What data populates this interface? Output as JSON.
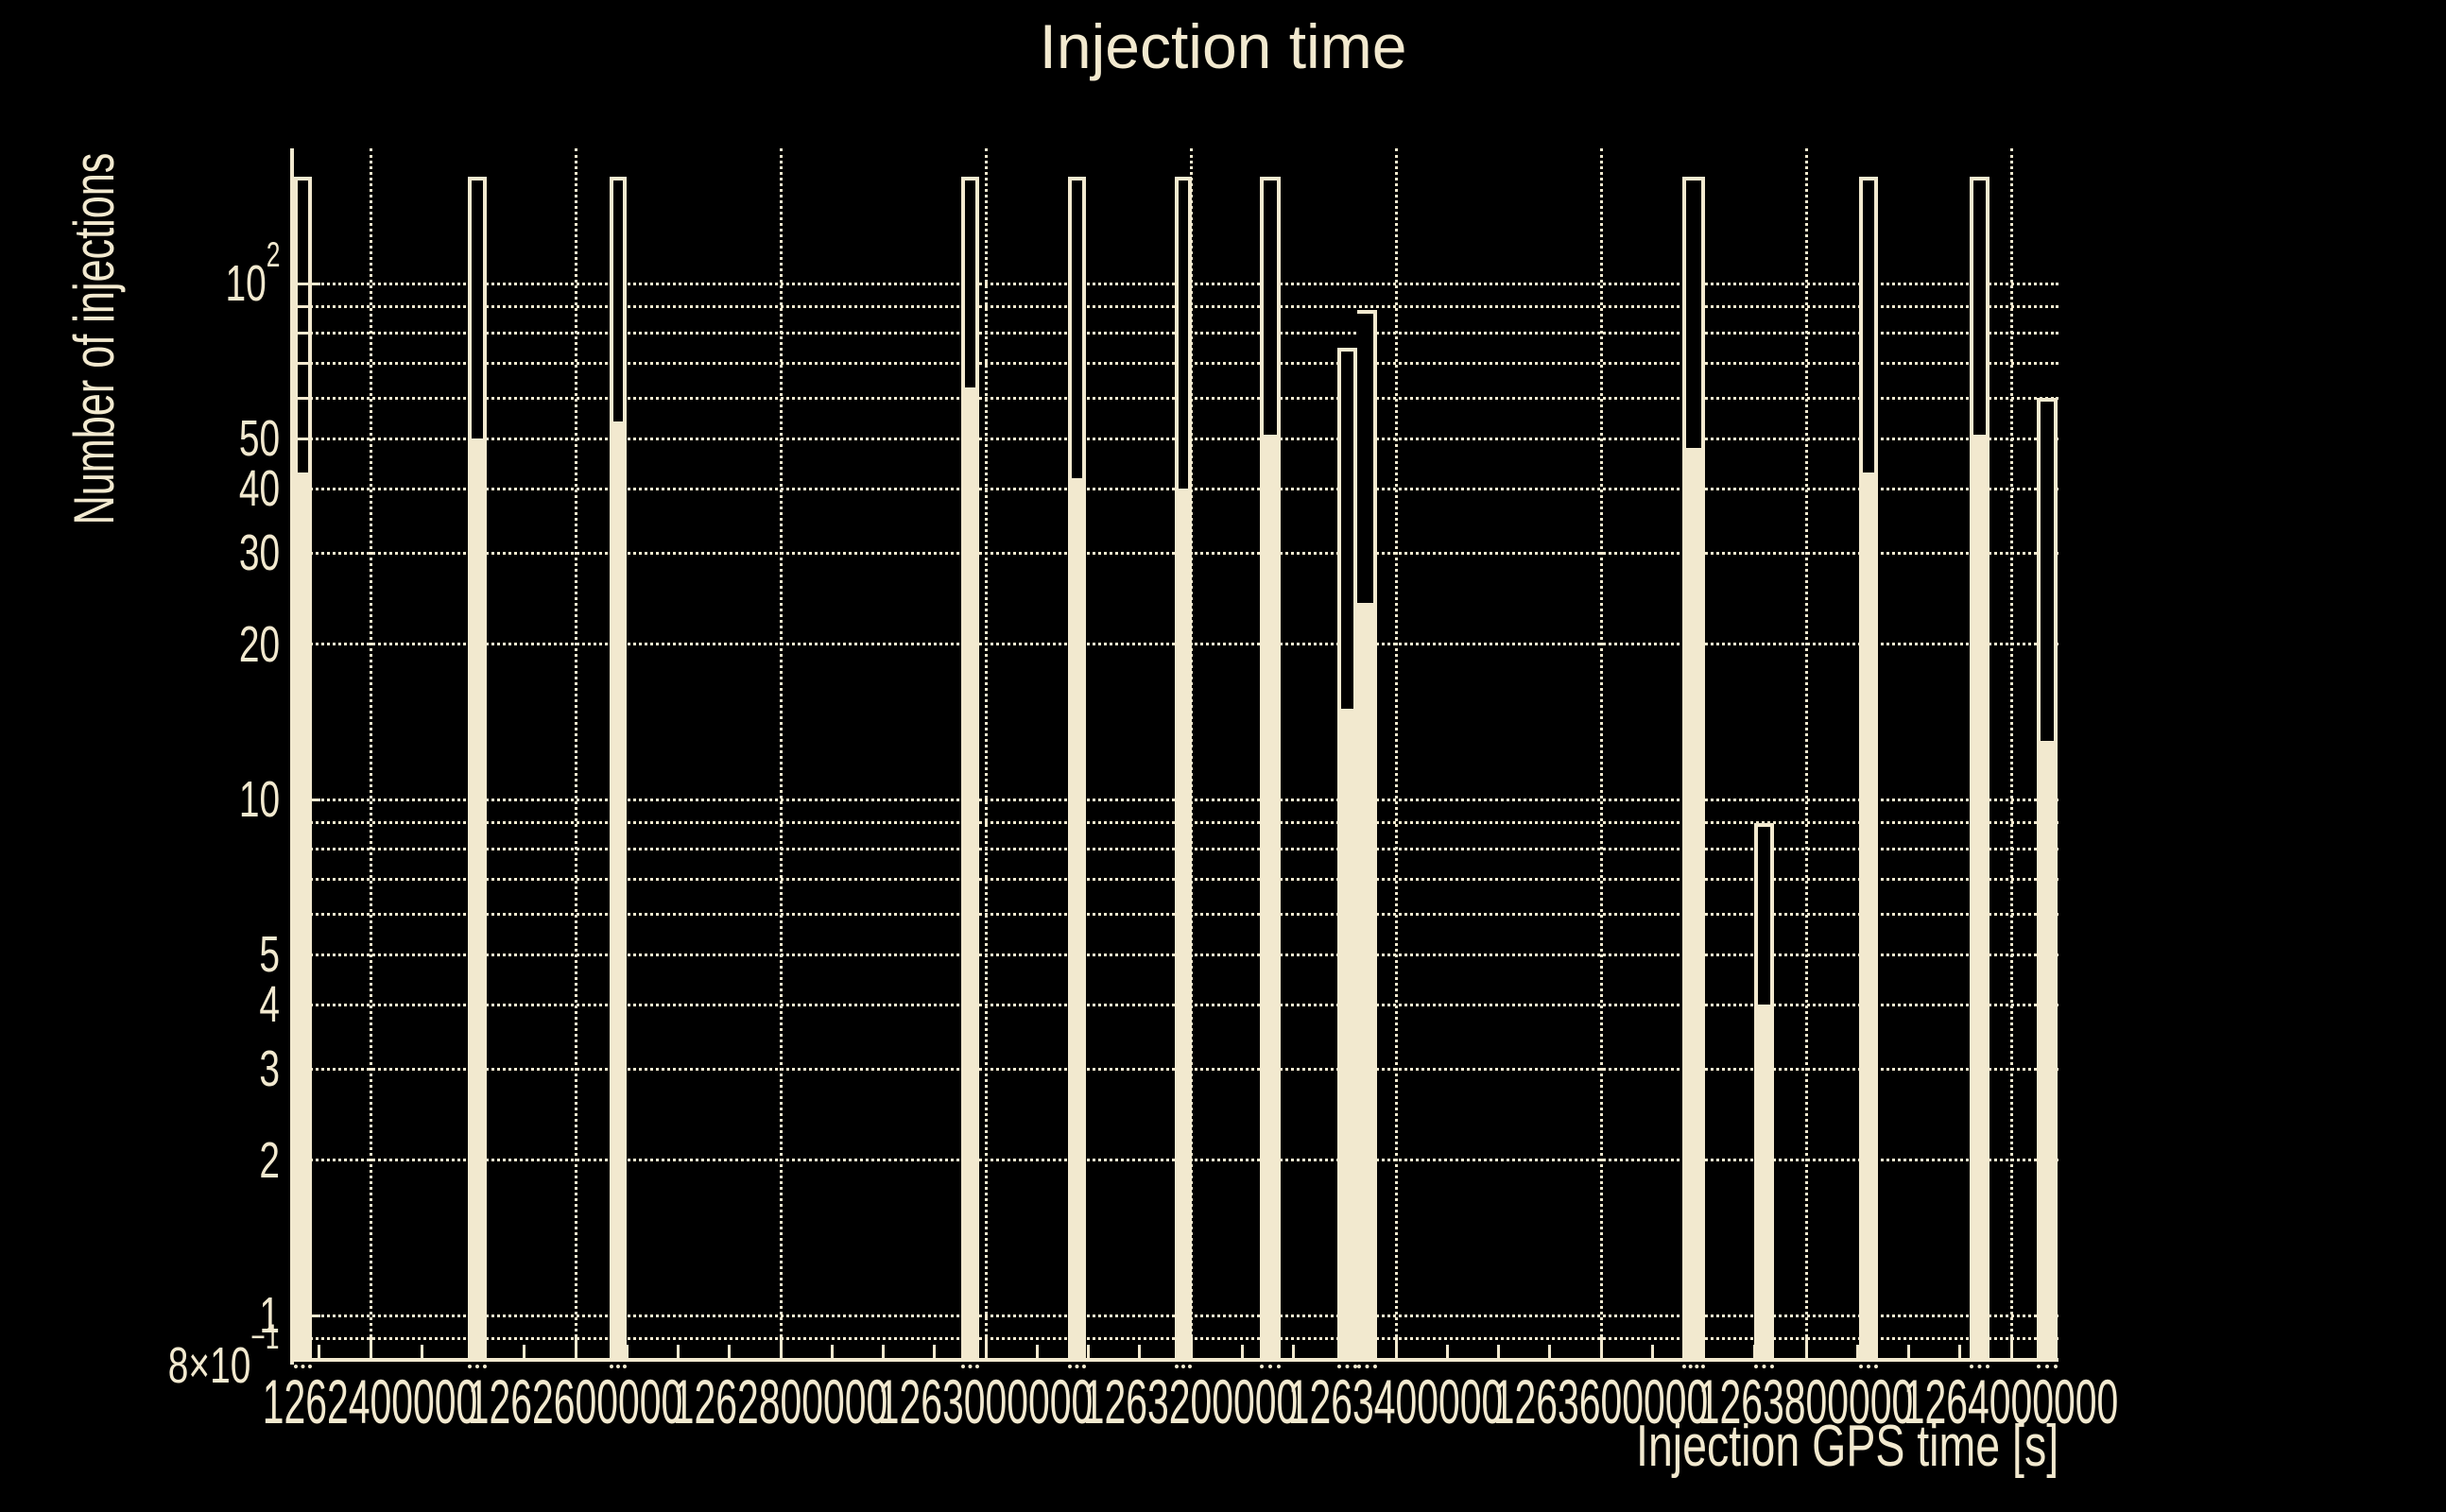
{
  "title": "Injection time",
  "colors": {
    "background": "#000000",
    "foreground": "#f2e9cf"
  },
  "chart_data": {
    "type": "bar",
    "subtype": "histogram-log-y",
    "title": "Injection time",
    "xlabel": "Injection GPS time [s]",
    "ylabel": "Number of injections",
    "y_scale": "log",
    "ylim": [
      0.8,
      183
    ],
    "xlim": [
      1262325000,
      1264046000
    ],
    "grid": "dotted",
    "legend": "none",
    "x_tick_values": [
      1262400000,
      1262600000,
      1262800000,
      1263000000,
      1263200000,
      1263400000,
      1263600000,
      1263800000,
      1264000000
    ],
    "x_tick_labels": [
      "1262400000",
      "1262600000",
      "1262800000",
      "1263000000",
      "1263200000",
      "1263400000",
      "1263600000",
      "1263800000",
      "1264000000"
    ],
    "x_minor_tick_step_s": 50000,
    "y_tick_labels": [
      {
        "v": 100,
        "text": "10",
        "sup": "2"
      },
      {
        "v": 50,
        "text": "50"
      },
      {
        "v": 40,
        "text": "40"
      },
      {
        "v": 30,
        "text": "30"
      },
      {
        "v": 20,
        "text": "20"
      },
      {
        "v": 10,
        "text": "10"
      },
      {
        "v": 5,
        "text": "5"
      },
      {
        "v": 4,
        "text": "4"
      },
      {
        "v": 3,
        "text": "3"
      },
      {
        "v": 2,
        "text": "2"
      },
      {
        "v": 1,
        "text": "1"
      },
      {
        "v": 0.8,
        "text": "8×10",
        "sup": "−1"
      }
    ],
    "y_unlabeled_ticks": [
      90,
      80,
      70,
      60,
      9,
      8,
      7,
      6,
      0.9
    ],
    "y_major_ticks": [
      100,
      10,
      1
    ],
    "y_grid_values": [
      100,
      90,
      80,
      70,
      60,
      50,
      40,
      30,
      20,
      10,
      9,
      8,
      7,
      6,
      5,
      4,
      3,
      2,
      1,
      0.9
    ],
    "series": [
      {
        "name": "outline-histogram",
        "style": "hollow",
        "color": "#f2e9cf"
      },
      {
        "name": "filled-histogram",
        "style": "filled",
        "color": "#f2e9cf"
      }
    ],
    "bins": [
      {
        "gps_start": 1262325000,
        "gps_end": 1262343000,
        "filled": 43,
        "outline": 161
      },
      {
        "gps_start": 1262495000,
        "gps_end": 1262513000,
        "filled": 50,
        "outline": 161
      },
      {
        "gps_start": 1262633000,
        "gps_end": 1262650000,
        "filled": 54,
        "outline": 161
      },
      {
        "gps_start": 1262976000,
        "gps_end": 1262994000,
        "filled": 63,
        "outline": 161
      },
      {
        "gps_start": 1263080000,
        "gps_end": 1263098000,
        "filled": 42,
        "outline": 161
      },
      {
        "gps_start": 1263184000,
        "gps_end": 1263201000,
        "filled": 40,
        "outline": 161
      },
      {
        "gps_start": 1263267000,
        "gps_end": 1263288000,
        "filled": 51,
        "outline": 161
      },
      {
        "gps_start": 1263343000,
        "gps_end": 1263362000,
        "filled": 15,
        "outline": 75
      },
      {
        "gps_start": 1263362000,
        "gps_end": 1263382000,
        "filled": 24,
        "outline": 89,
        "merge_left": true
      },
      {
        "gps_start": 1263679000,
        "gps_end": 1263701000,
        "filled": 48,
        "outline": 161
      },
      {
        "gps_start": 1263749000,
        "gps_end": 1263769000,
        "filled": 4,
        "outline": 9
      },
      {
        "gps_start": 1263852000,
        "gps_end": 1263870000,
        "filled": 43,
        "outline": 161
      },
      {
        "gps_start": 1263959000,
        "gps_end": 1263979000,
        "filled": 51,
        "outline": 161
      },
      {
        "gps_start": 1264025000,
        "gps_end": 1264045000,
        "filled": 13,
        "outline": 60
      }
    ]
  }
}
